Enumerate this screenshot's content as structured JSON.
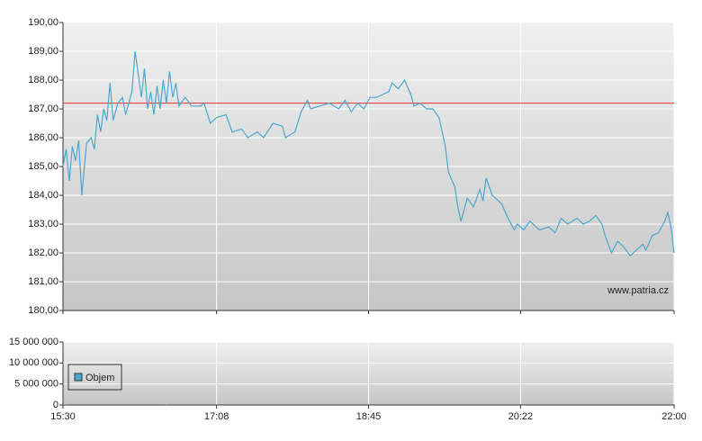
{
  "chart_data": [
    {
      "type": "line",
      "x": [
        "15:30",
        "15:32",
        "15:34",
        "15:36",
        "15:38",
        "15:40",
        "15:42",
        "15:45",
        "15:48",
        "15:50",
        "15:52",
        "15:54",
        "15:56",
        "15:58",
        "16:00",
        "16:02",
        "16:05",
        "16:08",
        "16:10",
        "16:14",
        "16:16",
        "16:18",
        "16:20",
        "16:22",
        "16:24",
        "16:26",
        "16:28",
        "16:30",
        "16:32",
        "16:34",
        "16:36",
        "16:38",
        "16:40",
        "16:42",
        "16:44",
        "16:48",
        "16:52",
        "16:58",
        "17:00",
        "17:04",
        "17:08",
        "17:14",
        "17:18",
        "17:24",
        "17:28",
        "17:34",
        "17:38",
        "17:44",
        "17:50",
        "17:52",
        "17:58",
        "18:02",
        "18:06",
        "18:08",
        "18:14",
        "18:20",
        "18:26",
        "18:30",
        "18:34",
        "18:38",
        "18:42",
        "18:46",
        "18:50",
        "18:54",
        "18:58",
        "19:00",
        "19:04",
        "19:08",
        "19:12",
        "19:14",
        "19:18",
        "19:22",
        "19:26",
        "19:30",
        "19:34",
        "19:36",
        "19:40",
        "19:42",
        "19:44",
        "19:48",
        "19:52",
        "19:56",
        "19:58",
        "20:00",
        "20:04",
        "20:06",
        "20:10",
        "20:14",
        "20:18",
        "20:20",
        "20:24",
        "20:28",
        "20:32",
        "20:34",
        "20:40",
        "20:44",
        "20:48",
        "20:52",
        "20:58",
        "21:02",
        "21:06",
        "21:10",
        "21:14",
        "21:16",
        "21:20",
        "21:24",
        "21:28",
        "21:32",
        "21:36",
        "21:40",
        "21:42",
        "21:46",
        "21:50",
        "21:54",
        "21:56",
        "21:58",
        "22:00"
      ],
      "series": [
        {
          "color": "#4aa8d0",
          "values": [
            185.0,
            185.6,
            184.5,
            185.7,
            185.2,
            185.9,
            184.0,
            185.8,
            186.0,
            185.6,
            186.8,
            186.2,
            187.0,
            186.6,
            187.9,
            186.6,
            187.2,
            187.4,
            186.8,
            187.6,
            189.0,
            188.2,
            187.4,
            188.4,
            187.0,
            187.6,
            186.8,
            187.8,
            187.0,
            188.0,
            187.2,
            188.3,
            187.4,
            187.9,
            187.1,
            187.4,
            187.1,
            187.1,
            187.2,
            186.5,
            186.7,
            186.8,
            186.2,
            186.3,
            186.0,
            186.2,
            186.0,
            186.5,
            186.4,
            186.0,
            186.2,
            186.9,
            187.3,
            187.0,
            187.1,
            187.2,
            187.0,
            187.3,
            186.9,
            187.2,
            187.0,
            187.4,
            187.4,
            187.5,
            187.6,
            187.9,
            187.7,
            188.0,
            187.5,
            187.1,
            187.2,
            187.0,
            187.0,
            186.7,
            185.7,
            184.8,
            184.3,
            183.6,
            183.1,
            183.9,
            183.6,
            184.2,
            183.8,
            184.6,
            184.0,
            183.9,
            183.7,
            183.2,
            182.8,
            183.0,
            182.8,
            183.1,
            182.9,
            182.8,
            182.9,
            182.7,
            183.2,
            183.0,
            183.2,
            183.0,
            183.1,
            183.3,
            183.0,
            182.6,
            182.0,
            182.4,
            182.2,
            181.9,
            182.1,
            182.3,
            182.1,
            182.6,
            182.7,
            183.1,
            183.4,
            182.9,
            182.0
          ]
        }
      ],
      "reference_line": {
        "value": 187.2,
        "color": "#e03030"
      },
      "xlim": [
        "15:30",
        "22:00"
      ],
      "ylim": [
        180,
        190
      ],
      "yticks": [
        {
          "value": 180,
          "label": "180,00"
        },
        {
          "value": 181,
          "label": "181,00"
        },
        {
          "value": 182,
          "label": "182,00"
        },
        {
          "value": 183,
          "label": "183,00"
        },
        {
          "value": 184,
          "label": "184,00"
        },
        {
          "value": 185,
          "label": "185,00"
        },
        {
          "value": 186,
          "label": "186,00"
        },
        {
          "value": 187,
          "label": "187,00"
        },
        {
          "value": 188,
          "label": "188,00"
        },
        {
          "value": 189,
          "label": "189,00"
        },
        {
          "value": 190,
          "label": "190,00"
        }
      ],
      "grid": true,
      "annotation": "www.patria.cz"
    },
    {
      "type": "bar",
      "x": [
        "15:31",
        "16:36",
        "22:00"
      ],
      "series": [
        {
          "name": "Objem",
          "color": "#4aa8d0",
          "values": [
            150000,
            100000,
            150000
          ]
        }
      ],
      "xlim": [
        "15:30",
        "22:00"
      ],
      "xticks": [
        "15:30",
        "17:08",
        "18:45",
        "20:22",
        "22:00"
      ],
      "ylim": [
        0,
        15000000
      ],
      "yticks": [
        0,
        {
          "value": 5000000,
          "label": "5 000 000"
        },
        {
          "value": 10000000,
          "label": "10 000 000"
        },
        {
          "value": 15000000,
          "label": "15 000 000"
        }
      ],
      "grid": true,
      "legend": "upper left"
    }
  ]
}
